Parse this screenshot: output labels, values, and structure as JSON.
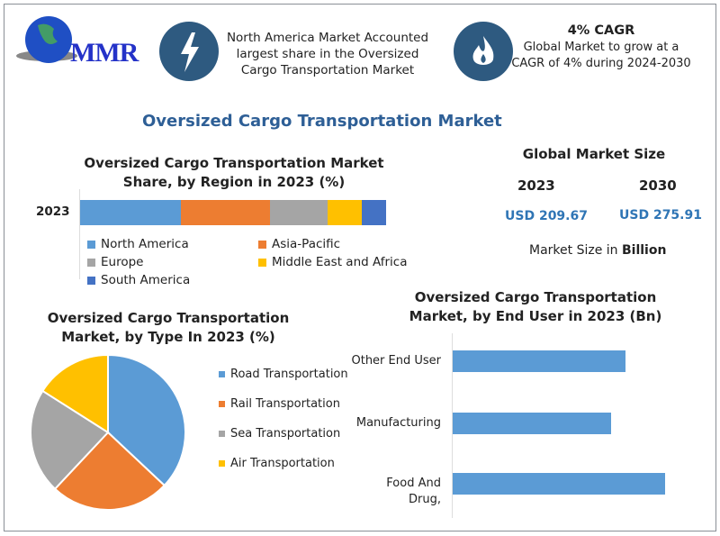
{
  "brand": {
    "logo_text": "MMR"
  },
  "highlights": [
    {
      "icon": "lightning-icon",
      "text": "North America Market Accounted largest share in the Oversized Cargo Transportation Market"
    },
    {
      "icon": "flame-icon",
      "title": "4% CAGR",
      "text": "Global Market to grow at a CAGR of 4% during 2024-2030"
    }
  ],
  "main_title": "Oversized Cargo Transportation Market",
  "market_size": {
    "title": "Global Market Size",
    "years": [
      "2023",
      "2030"
    ],
    "values": [
      "USD 209.67",
      "USD 275.91"
    ],
    "unit_prefix": "Market Size in ",
    "unit": "Billion"
  },
  "colors": {
    "blue": "#5b9bd5",
    "orange": "#ed7d31",
    "gray": "#a5a5a5",
    "yellow": "#ffc000",
    "darkblue": "#4472c4",
    "accent": "#2e5a80"
  },
  "chart_data": [
    {
      "type": "bar",
      "stacked": true,
      "orientation": "horizontal",
      "title": "Oversized Cargo Transportation Market Share, by Region in 2023 (%)",
      "categories": [
        "2023"
      ],
      "series": [
        {
          "name": "North America",
          "values": [
            33
          ]
        },
        {
          "name": "Asia-Pacific",
          "values": [
            29
          ]
        },
        {
          "name": "Europe",
          "values": [
            19
          ]
        },
        {
          "name": "Middle East and Africa",
          "values": [
            11
          ]
        },
        {
          "name": "South America",
          "values": [
            8
          ]
        }
      ],
      "legend": "bottom"
    },
    {
      "type": "pie",
      "title": "Oversized Cargo Transportation Market, by Type In 2023 (%)",
      "labels": [
        "Road Transportation",
        "Rail Transportation",
        "Sea Transportation",
        "Air Transportation"
      ],
      "values": [
        37,
        25,
        22,
        16
      ],
      "legend": "right"
    },
    {
      "type": "bar",
      "orientation": "horizontal",
      "title": "Oversized Cargo Transportation Market, by End User in 2023 (Bn)",
      "categories": [
        "Other End User",
        "Manufacturing",
        "Food And Drug,"
      ],
      "values": [
        66.6,
        61.1,
        81.9
      ]
    }
  ]
}
